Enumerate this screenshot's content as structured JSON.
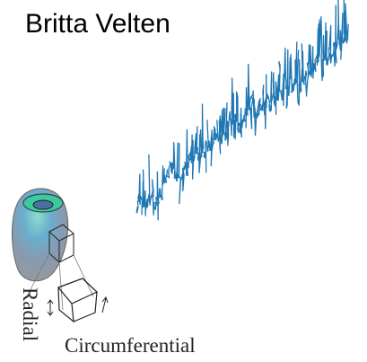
{
  "title": "Britta Velten",
  "figure": {
    "radial_label": "Radial",
    "circumferential_label": "Circumferential"
  }
}
